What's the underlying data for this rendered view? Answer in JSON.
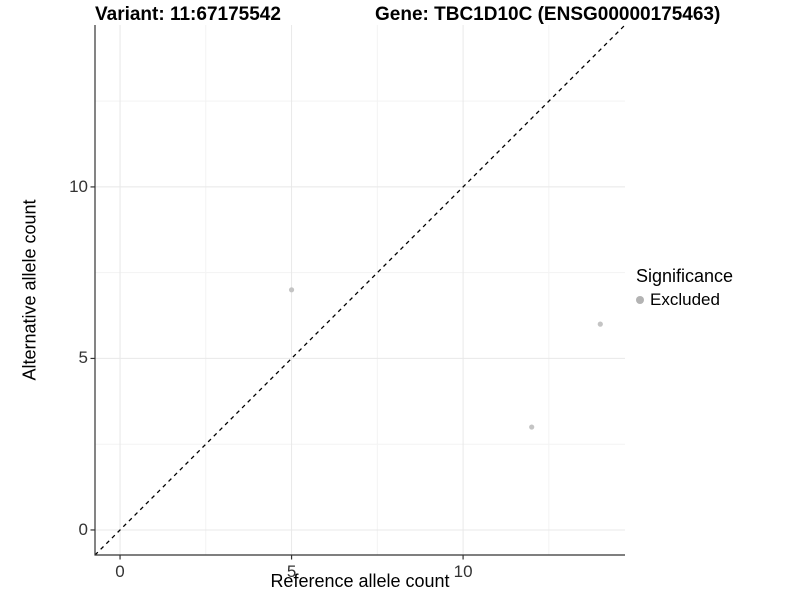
{
  "title": {
    "variant": "Variant: 11:67175542",
    "gene": "Gene: TBC1D10C (ENSG00000175463)"
  },
  "chart_data": {
    "type": "scatter",
    "title": "Variant: 11:67175542   Gene: TBC1D10C (ENSG00000175463)",
    "xlabel": "Reference allele count",
    "ylabel": "Alternative allele count",
    "xlim": [
      -0.73,
      14.72
    ],
    "ylim": [
      -0.73,
      14.72
    ],
    "x_ticks": [
      0,
      5,
      10
    ],
    "y_ticks": [
      0,
      5,
      10
    ],
    "x_minor_ticks": [
      2.5,
      7.5,
      12.5
    ],
    "y_minor_ticks": [
      2.5,
      7.5,
      12.5
    ],
    "grid": "major and minor gridlines, light gray on white background",
    "legend_position": "right",
    "series": [
      {
        "name": "Excluded",
        "marker": "circle",
        "color": "#c4c4c4",
        "points": [
          [
            5,
            7
          ],
          [
            12,
            3
          ],
          [
            14,
            6
          ]
        ]
      }
    ],
    "reference_line": {
      "type": "identity y = x",
      "style": "dashed",
      "color": "#000000"
    }
  },
  "legend": {
    "title": "Significance",
    "items": [
      {
        "label": "Excluded",
        "color": "#b3b3b3"
      }
    ]
  },
  "colors": {
    "background": "#ffffff",
    "axis_line": "#333333",
    "tick_label": "#333333",
    "grid_major": "#e8e8e8",
    "grid_minor": "#f3f3f3",
    "point": "#c4c4c4"
  }
}
